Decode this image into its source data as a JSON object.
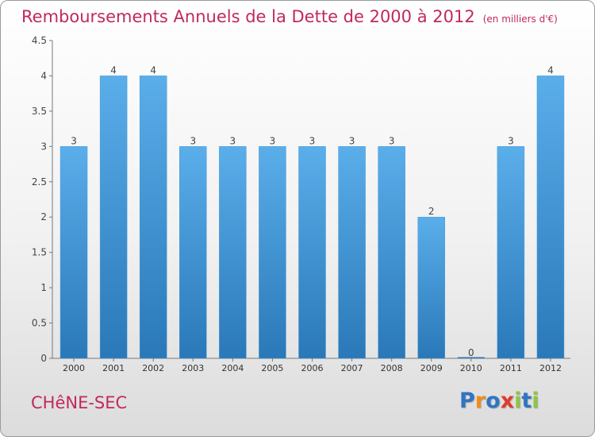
{
  "header": {
    "title": "Remboursements Annuels de la Dette de 2000 à 2012",
    "unit": "(en milliers d'€)"
  },
  "footer": {
    "commune": "CHêNE-SEC",
    "logo_text": "Proxiti"
  },
  "colors": {
    "title": "#c0295f",
    "bar_light": "#5aaeea",
    "bar_dark": "#2a78b8",
    "logo": [
      "#2e75c3",
      "#f08c1a",
      "#2e75c3",
      "#e33a2b",
      "#8dc63f",
      "#2e75c3",
      "#8dc63f"
    ]
  },
  "chart_data": {
    "type": "bar",
    "title": "Remboursements Annuels de la Dette de 2000 à 2012",
    "ylabel": "en milliers d'€",
    "categories": [
      "2000",
      "2001",
      "2002",
      "2003",
      "2004",
      "2005",
      "2006",
      "2007",
      "2008",
      "2009",
      "2010",
      "2011",
      "2012"
    ],
    "values": [
      3,
      4,
      4,
      3,
      3,
      3,
      3,
      3,
      3,
      2,
      0,
      3,
      4
    ],
    "labels": [
      "3",
      "4",
      "4",
      "3",
      "3",
      "3",
      "3",
      "3",
      "3",
      "2",
      "0",
      "3",
      "4"
    ],
    "ylim": [
      0,
      4.5
    ],
    "yticks": [
      {
        "value": 0,
        "label": "0"
      },
      {
        "value": 0.5,
        "label": "0.5"
      },
      {
        "value": 1,
        "label": "1"
      },
      {
        "value": 1.5,
        "label": "1.5"
      },
      {
        "value": 2,
        "label": "2"
      },
      {
        "value": 2.5,
        "label": "2.5"
      },
      {
        "value": 3,
        "label": "3"
      },
      {
        "value": 3.5,
        "label": "3.5"
      },
      {
        "value": 4,
        "label": "4"
      },
      {
        "value": 4.5,
        "label": "4.5"
      }
    ],
    "grid": false
  }
}
